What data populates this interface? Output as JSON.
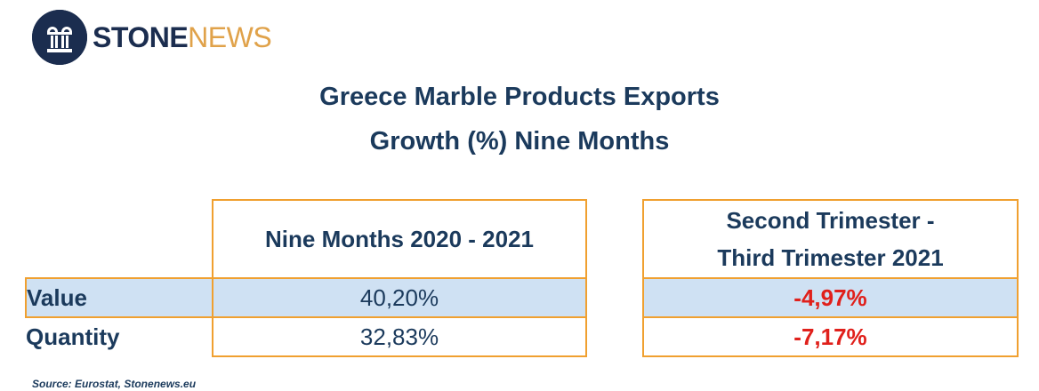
{
  "logo": {
    "stone": "STONE",
    "news": "NEWS",
    "navy": "#1b2d4f",
    "gold": "#e0a24a"
  },
  "title": {
    "line1": "Greece Marble Products Exports",
    "line2": "Growth (%) Nine Months"
  },
  "chart_data": {
    "type": "table",
    "columns": [
      "Nine Months 2020 - 2021",
      [
        "Second Trimester -",
        "Third Trimester 2021"
      ]
    ],
    "rows": [
      {
        "label": "Value",
        "values": [
          "40,20%",
          "-4,97%"
        ]
      },
      {
        "label": "Quantity",
        "values": [
          "32,83%",
          "-7,17%"
        ]
      }
    ],
    "highlight_color": "#cfe1f3",
    "border_color": "#f0a030",
    "negative_color": "#e0201b"
  },
  "source": "Source: Eurostat, Stonenews.eu"
}
